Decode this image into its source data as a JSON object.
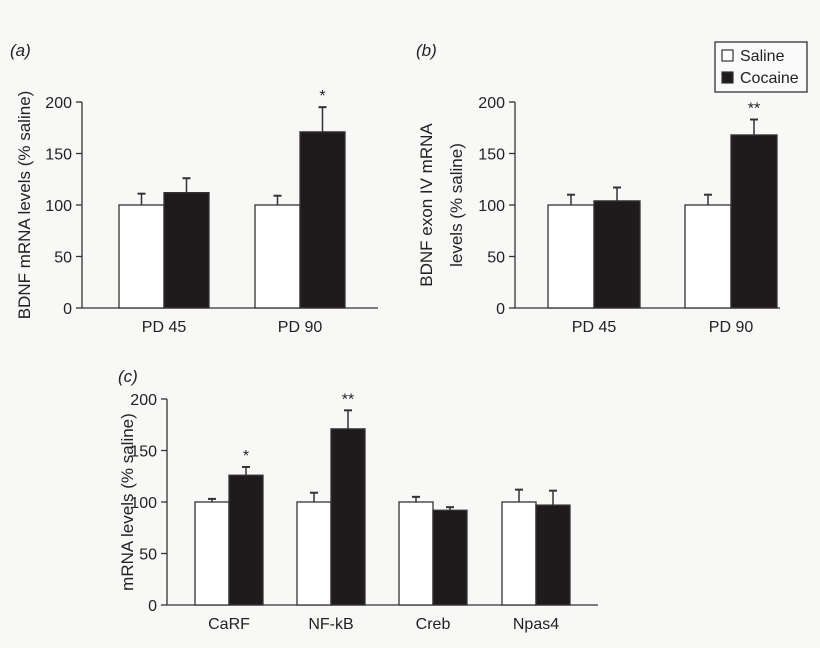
{
  "chart_data": [
    {
      "type": "bar",
      "panel_label": "(a)",
      "ylabel": "BDNF mRNA levels (% saline)",
      "ylim": [
        0,
        200
      ],
      "yticks": [
        0,
        50,
        100,
        150,
        200
      ],
      "categories": [
        "PD 45",
        "PD 90"
      ],
      "series": [
        {
          "name": "Saline",
          "values": [
            100,
            100
          ],
          "error_upper": [
            111,
            109
          ],
          "color": "#ffffff"
        },
        {
          "name": "Cocaine",
          "values": [
            112,
            171
          ],
          "error_upper": [
            126,
            195
          ],
          "color": "#1f1b1c"
        }
      ],
      "annotations": [
        {
          "category": "PD 90",
          "series": "Cocaine",
          "text": "*"
        }
      ]
    },
    {
      "type": "bar",
      "panel_label": "(b)",
      "ylabel": [
        "BDNF exon IV mRNA",
        "levels (% saline)"
      ],
      "ylim": [
        0,
        200
      ],
      "yticks": [
        0,
        50,
        100,
        150,
        200
      ],
      "categories": [
        "PD 45",
        "PD 90"
      ],
      "series": [
        {
          "name": "Saline",
          "values": [
            100,
            100
          ],
          "error_upper": [
            110,
            110
          ],
          "color": "#ffffff"
        },
        {
          "name": "Cocaine",
          "values": [
            104,
            168
          ],
          "error_upper": [
            117,
            183
          ],
          "color": "#1f1b1c"
        }
      ],
      "annotations": [
        {
          "category": "PD 90",
          "series": "Cocaine",
          "text": "**"
        }
      ],
      "legend": {
        "placement": "top-right",
        "entries": [
          "Saline",
          "Cocaine"
        ]
      }
    },
    {
      "type": "bar",
      "panel_label": "(c)",
      "ylabel": "mRNA levels (% saline)",
      "ylim": [
        0,
        200
      ],
      "yticks": [
        0,
        50,
        100,
        150,
        200
      ],
      "categories": [
        "CaRF",
        "NF-kB",
        "Creb",
        "Npas4"
      ],
      "series": [
        {
          "name": "Saline",
          "values": [
            100,
            100,
            100,
            100
          ],
          "error_upper": [
            103,
            109,
            105,
            112
          ],
          "color": "#ffffff"
        },
        {
          "name": "Cocaine",
          "values": [
            126,
            171,
            92,
            97
          ],
          "error_upper": [
            134,
            189,
            95,
            111
          ],
          "color": "#1f1b1c"
        }
      ],
      "annotations": [
        {
          "category": "CaRF",
          "series": "Cocaine",
          "text": "*"
        },
        {
          "category": "NF-kB",
          "series": "Cocaine",
          "text": "**"
        }
      ]
    }
  ]
}
